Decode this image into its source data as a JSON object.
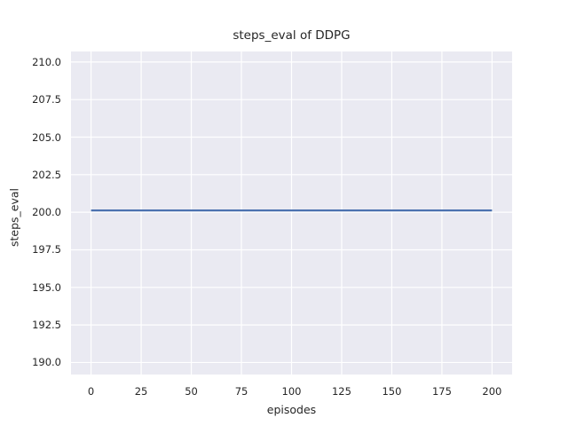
{
  "figure": {
    "background": "#ffffff"
  },
  "chart_data": {
    "type": "line",
    "title": "steps_eval of DDPG",
    "xlabel": "episodes",
    "ylabel": "steps_eval",
    "x_ticks": {
      "values": [
        0,
        25,
        50,
        75,
        100,
        125,
        150,
        175,
        200
      ],
      "labels": [
        "0",
        "25",
        "50",
        "75",
        "100",
        "125",
        "150",
        "175",
        "200"
      ]
    },
    "y_ticks": {
      "values": [
        190.0,
        192.5,
        195.0,
        197.5,
        200.0,
        202.5,
        205.0,
        207.5,
        210.0
      ],
      "labels": [
        "190.0",
        "192.5",
        "195.0",
        "197.5",
        "200.0",
        "202.5",
        "205.0",
        "207.5",
        "210.0"
      ]
    },
    "xlim": [
      -10,
      210
    ],
    "ylim": [
      189.2,
      210.7
    ],
    "grid": true,
    "legend": false,
    "style": {
      "plot_background": "#eaeaf2",
      "grid_color": "#ffffff",
      "text_color": "#262626",
      "line_width": 2.2
    },
    "series": [
      {
        "name": "steps_eval",
        "color": "#4c72b0",
        "x": [
          0,
          200
        ],
        "y": [
          200.0,
          200.0
        ]
      }
    ]
  }
}
